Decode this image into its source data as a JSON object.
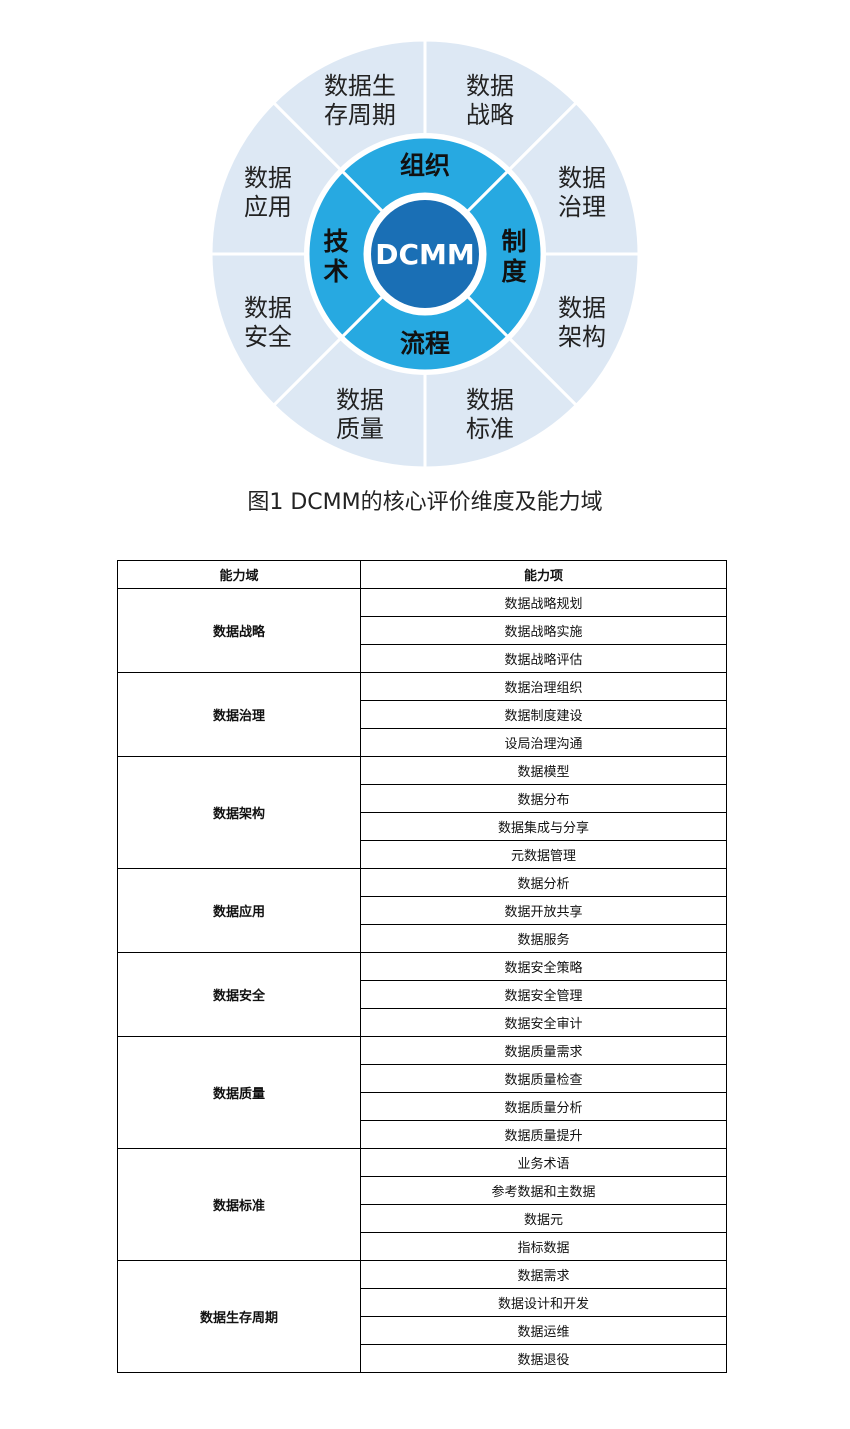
{
  "diagram": {
    "center_label": "DCMM",
    "inner_ring": [
      "组织",
      "制度",
      "流程",
      "技术"
    ],
    "outer_ring": [
      [
        "数据",
        "战略"
      ],
      [
        "数据",
        "治理"
      ],
      [
        "数据",
        "架构"
      ],
      [
        "数据",
        "标准"
      ],
      [
        "数据",
        "质量"
      ],
      [
        "数据",
        "安全"
      ],
      [
        "数据",
        "应用"
      ],
      [
        "数据生",
        "存周期"
      ]
    ],
    "colors": {
      "outer": "#dde8f4",
      "inner": "#27a9e1",
      "center": "#1a6fb5"
    }
  },
  "caption": "图1  DCMM的核心评价维度及能力域",
  "table": {
    "headers": [
      "能力域",
      "能力项"
    ],
    "groups": [
      {
        "domain": "数据战略",
        "items": [
          "数据战略规划",
          "数据战略实施",
          "数据战略评估"
        ]
      },
      {
        "domain": "数据治理",
        "items": [
          "数据治理组织",
          "数据制度建设",
          "设局治理沟通"
        ]
      },
      {
        "domain": "数据架构",
        "items": [
          "数据模型",
          "数据分布",
          "数据集成与分享",
          "元数据管理"
        ]
      },
      {
        "domain": "数据应用",
        "items": [
          "数据分析",
          "数据开放共享",
          "数据服务"
        ]
      },
      {
        "domain": "数据安全",
        "items": [
          "数据安全策略",
          "数据安全管理",
          "数据安全审计"
        ]
      },
      {
        "domain": "数据质量",
        "items": [
          "数据质量需求",
          "数据质量检查",
          "数据质量分析",
          "数据质量提升"
        ]
      },
      {
        "domain": "数据标准",
        "items": [
          "业务术语",
          "参考数据和主数据",
          "数据元",
          "指标数据"
        ]
      },
      {
        "domain": "数据生存周期",
        "items": [
          "数据需求",
          "数据设计和开发",
          "数据运维",
          "数据退役"
        ]
      }
    ]
  }
}
